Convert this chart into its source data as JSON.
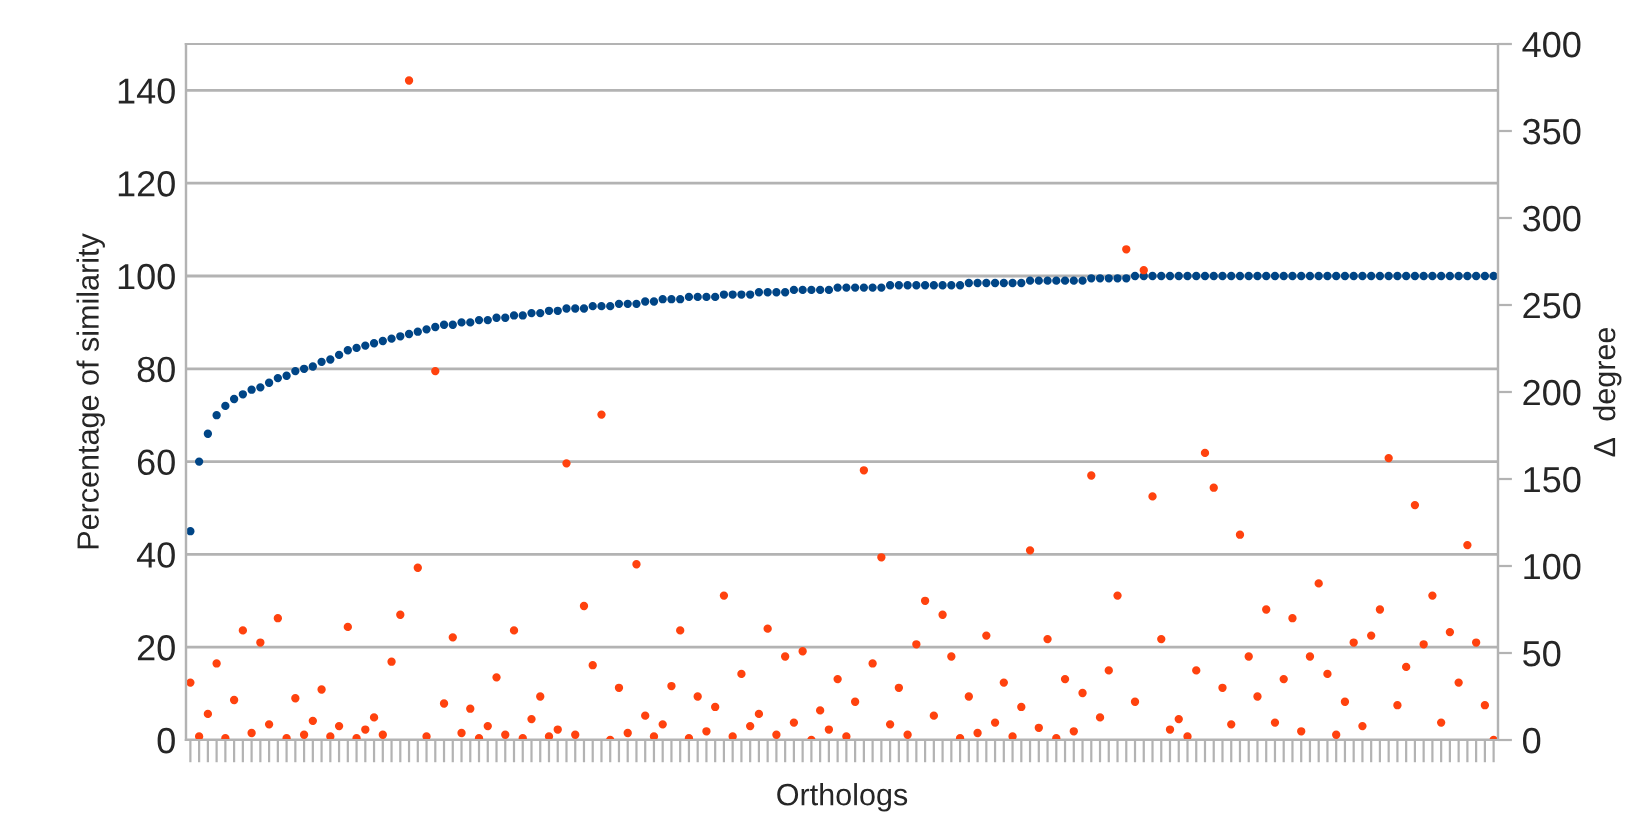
{
  "chart_data": {
    "type": "scatter",
    "xlabel": "Orthologs",
    "ylabel": "Percentage of similarity",
    "y2label": "Δ  degree",
    "categories": [
      null,
      null,
      null,
      null,
      null,
      null,
      null,
      null,
      null,
      null,
      null,
      null,
      null,
      null,
      null,
      null,
      null,
      null,
      null,
      null,
      null,
      null,
      null,
      null,
      null,
      null,
      null,
      null,
      null,
      null,
      null,
      null,
      null,
      null,
      null,
      null,
      null,
      null,
      null,
      null,
      null,
      null,
      null,
      null,
      null,
      null,
      null,
      null,
      null,
      null,
      null,
      null,
      null,
      null,
      null,
      null,
      null,
      null,
      null,
      null,
      null,
      null,
      null,
      null,
      null,
      null,
      null,
      null,
      null,
      null,
      null,
      null,
      null,
      null,
      null,
      null,
      null,
      null,
      null,
      null,
      null,
      null,
      null,
      null,
      null,
      null,
      null,
      null,
      null,
      null,
      null,
      null,
      null,
      null,
      null,
      null,
      null,
      null,
      null,
      null,
      null,
      null,
      null,
      null,
      null,
      null,
      null,
      null,
      null,
      null,
      null,
      null,
      null,
      null,
      null,
      null,
      null,
      null,
      null,
      null,
      null,
      null,
      null,
      null,
      null,
      null,
      null,
      null,
      null,
      null,
      null,
      null,
      null,
      null,
      null,
      null,
      null,
      null,
      null,
      null,
      null,
      null,
      null,
      null,
      null,
      null,
      null,
      null,
      null,
      null
    ],
    "series": [
      {
        "color": "#004586",
        "values": [
          45,
          60,
          66,
          70,
          72,
          73.5,
          74.5,
          75.5,
          76,
          77,
          78,
          78.5,
          79.5,
          80,
          80.5,
          81.5,
          82,
          83,
          84,
          84.5,
          85,
          85.5,
          86,
          86.5,
          87,
          87.5,
          88,
          88.5,
          89,
          89.5,
          89.5,
          90,
          90,
          90.5,
          90.5,
          91,
          91,
          91.5,
          91.5,
          92,
          92,
          92.5,
          92.5,
          93,
          93,
          93,
          93.5,
          93.5,
          93.5,
          94,
          94,
          94,
          94.5,
          94.5,
          95,
          95,
          95,
          95.5,
          95.5,
          95.5,
          95.5,
          96,
          96,
          96,
          96,
          96.5,
          96.5,
          96.5,
          96.5,
          97,
          97,
          97,
          97,
          97,
          97.5,
          97.5,
          97.5,
          97.5,
          97.5,
          97.5,
          98,
          98,
          98,
          98,
          98,
          98,
          98,
          98,
          98,
          98.5,
          98.5,
          98.5,
          98.5,
          98.5,
          98.5,
          98.5,
          99,
          99,
          99,
          99,
          99,
          99,
          99,
          99.5,
          99.5,
          99.5,
          99.5,
          99.5,
          100,
          100,
          100,
          100,
          100,
          100,
          100,
          100,
          100,
          100,
          100,
          100,
          100,
          100,
          100,
          100,
          100,
          100,
          100,
          100,
          100,
          100,
          100,
          100,
          100,
          100,
          100,
          100,
          100,
          100,
          100,
          100,
          100,
          100,
          100,
          100,
          100,
          100,
          100,
          100,
          100,
          100
        ]
      },
      {
        "color": "#ff420e",
        "axis": "y2",
        "values": [
          33,
          2,
          15,
          44,
          1,
          23,
          63,
          4,
          56,
          9,
          70,
          1,
          24,
          3,
          11,
          29,
          2,
          8,
          65,
          1,
          6,
          13,
          3,
          45,
          72,
          379,
          99,
          2,
          212,
          21,
          59,
          4,
          18,
          1,
          8,
          36,
          3,
          63,
          1,
          12,
          25,
          2,
          6,
          159,
          3,
          77,
          43,
          187,
          0,
          30,
          4,
          101,
          14,
          2,
          9,
          31,
          63,
          1,
          25,
          5,
          19,
          83,
          2,
          38,
          8,
          15,
          64,
          3,
          48,
          10,
          51,
          0,
          17,
          6,
          35,
          2,
          22,
          155,
          44,
          105,
          9,
          30,
          3,
          55,
          80,
          14,
          72,
          48,
          1,
          25,
          4,
          60,
          10,
          33,
          2,
          19,
          109,
          7,
          58,
          1,
          35,
          5,
          27,
          152,
          13,
          40,
          83,
          282,
          22,
          270,
          140,
          58,
          6,
          12,
          2,
          40,
          165,
          145,
          30,
          9,
          118,
          48,
          25,
          75,
          10,
          35,
          70,
          5,
          48,
          90,
          38,
          3,
          22,
          56,
          8,
          60,
          75,
          162,
          20,
          42,
          135,
          55,
          83,
          10,
          62,
          33,
          112,
          56,
          20,
          0
        ]
      }
    ],
    "ylim": [
      0,
      150
    ],
    "yticks": [
      0,
      20,
      40,
      60,
      80,
      100,
      120,
      140
    ],
    "y2lim": [
      0,
      400
    ],
    "y2ticks": [
      0,
      50,
      100,
      150,
      200,
      250,
      300,
      350,
      400
    ],
    "grid": "y",
    "marker": "circle"
  }
}
